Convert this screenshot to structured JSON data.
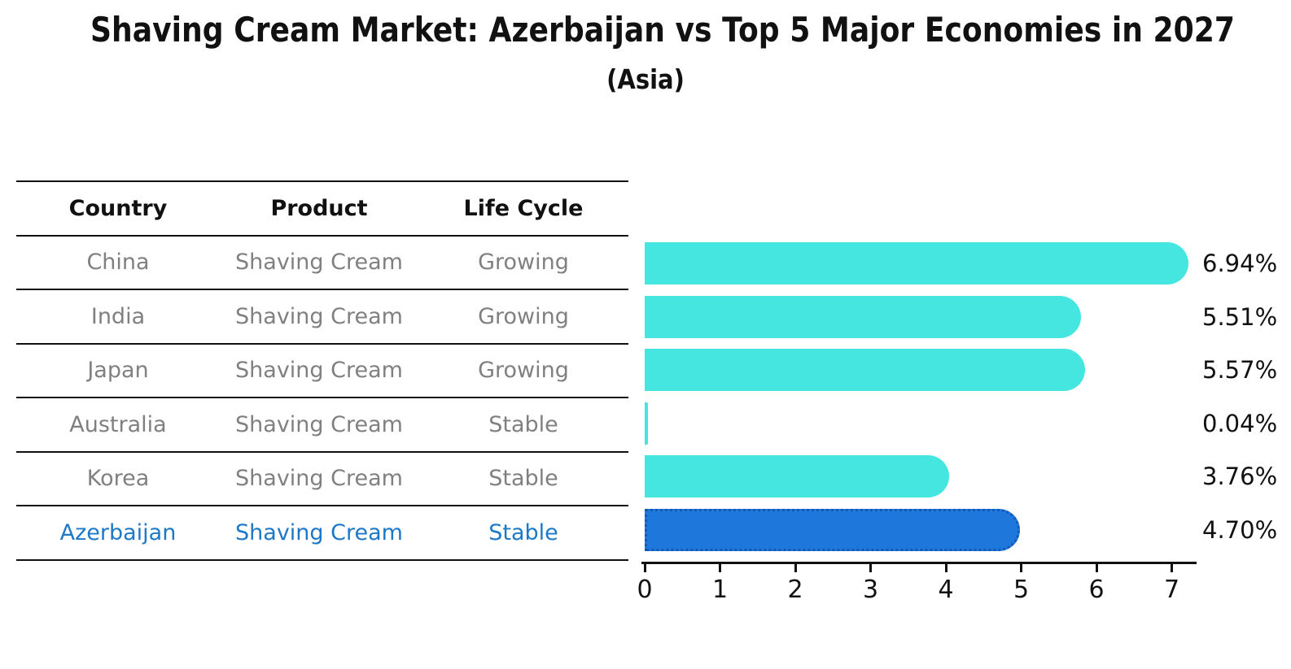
{
  "title": "Shaving Cream Market: Azerbaijan vs Top 5 Major Economies in 2027",
  "subtitle": "(Asia)",
  "table": {
    "headers": [
      "Country",
      "Product",
      "Life Cycle"
    ],
    "rows": [
      {
        "country": "China",
        "product": "Shaving Cream",
        "life_cycle": "Growing"
      },
      {
        "country": "India",
        "product": "Shaving Cream",
        "life_cycle": "Growing"
      },
      {
        "country": "Japan",
        "product": "Shaving Cream",
        "life_cycle": "Growing"
      },
      {
        "country": "Australia",
        "product": "Shaving Cream",
        "life_cycle": "Stable"
      },
      {
        "country": "Korea",
        "product": "Shaving Cream",
        "life_cycle": "Stable"
      },
      {
        "country": "Azerbaijan",
        "product": "Shaving Cream",
        "life_cycle": "Stable"
      }
    ],
    "highlight_row": "Azerbaijan"
  },
  "chart_data": {
    "type": "bar",
    "orientation": "horizontal",
    "title": "Shaving Cream Market: Azerbaijan vs Top 5 Major Economies in 2027 (Asia)",
    "categories": [
      "China",
      "India",
      "Japan",
      "Australia",
      "Korea",
      "Azerbaijan"
    ],
    "values": [
      6.94,
      5.51,
      5.57,
      0.04,
      3.76,
      4.7
    ],
    "labels": [
      "6.94%",
      "5.51%",
      "5.57%",
      "0.04%",
      "3.76%",
      "4.70%"
    ],
    "x_ticks": [
      0,
      1,
      2,
      3,
      4,
      5,
      6,
      7
    ],
    "xlim": [
      0,
      7.3
    ],
    "xlabel": "",
    "ylabel": "",
    "grid": false,
    "legend": false,
    "bar_color": "#45E6E0",
    "highlight_category": "Azerbaijan",
    "highlight_color": "#1E77DB",
    "highlight_border_color": "#1259B8",
    "value_label_color": "#111111"
  },
  "colors": {
    "title_text": "#111111",
    "table_header_text": "#111111",
    "table_body_text": "#808080",
    "highlight_text": "#1E78C8",
    "rule_line": "#111111",
    "axis": "#111111"
  }
}
